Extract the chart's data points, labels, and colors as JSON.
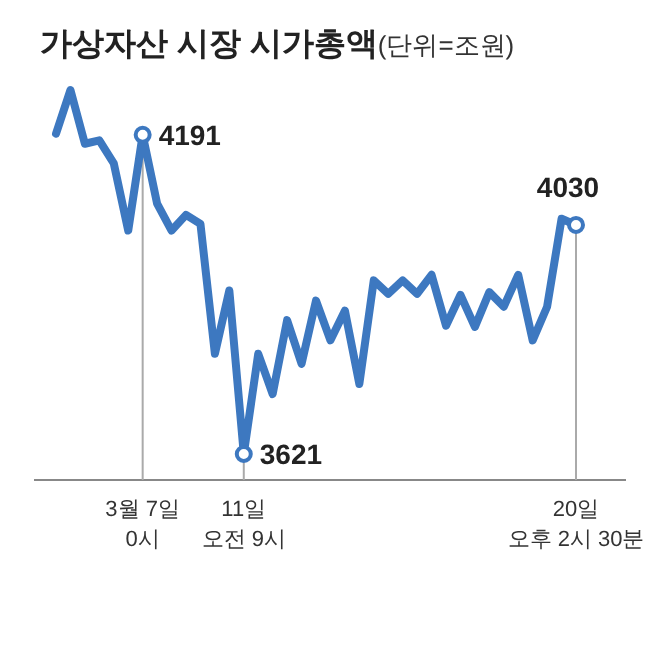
{
  "chart_data": {
    "type": "line",
    "title": "가상자산 시장 시가총액(단위=조원)",
    "categories": [
      null,
      null,
      null,
      null,
      null,
      null,
      "3월 7일\n0시",
      null,
      null,
      null,
      null,
      null,
      null,
      "11일\n오전 9시",
      null,
      null,
      null,
      null,
      null,
      null,
      null,
      null,
      null,
      null,
      null,
      null,
      null,
      null,
      null,
      null,
      null,
      null,
      null,
      null,
      null,
      null,
      "20일\n오후 2시 30분"
    ],
    "series": [
      {
        "color": "#3d78c0",
        "values": [
          4193,
          4271,
          4175,
          4181,
          4140,
          4020,
          4191,
          4068,
          4020,
          4048,
          4032,
          3800,
          3913,
          3621,
          3800,
          3728,
          3860,
          3782,
          3895,
          3824,
          3877,
          3746,
          3931,
          3907,
          3931,
          3907,
          3941,
          3850,
          3905,
          3848,
          3910,
          3884,
          3941,
          3824,
          3884,
          4041,
          4030
        ],
        "value_labels": [
          null,
          null,
          null,
          null,
          null,
          null,
          "4191",
          null,
          null,
          null,
          null,
          null,
          null,
          "3621",
          null,
          null,
          null,
          null,
          null,
          null,
          null,
          null,
          null,
          null,
          null,
          null,
          null,
          null,
          null,
          null,
          null,
          null,
          null,
          null,
          null,
          null,
          "4030"
        ]
      }
    ],
    "grid": "x"
  }
}
